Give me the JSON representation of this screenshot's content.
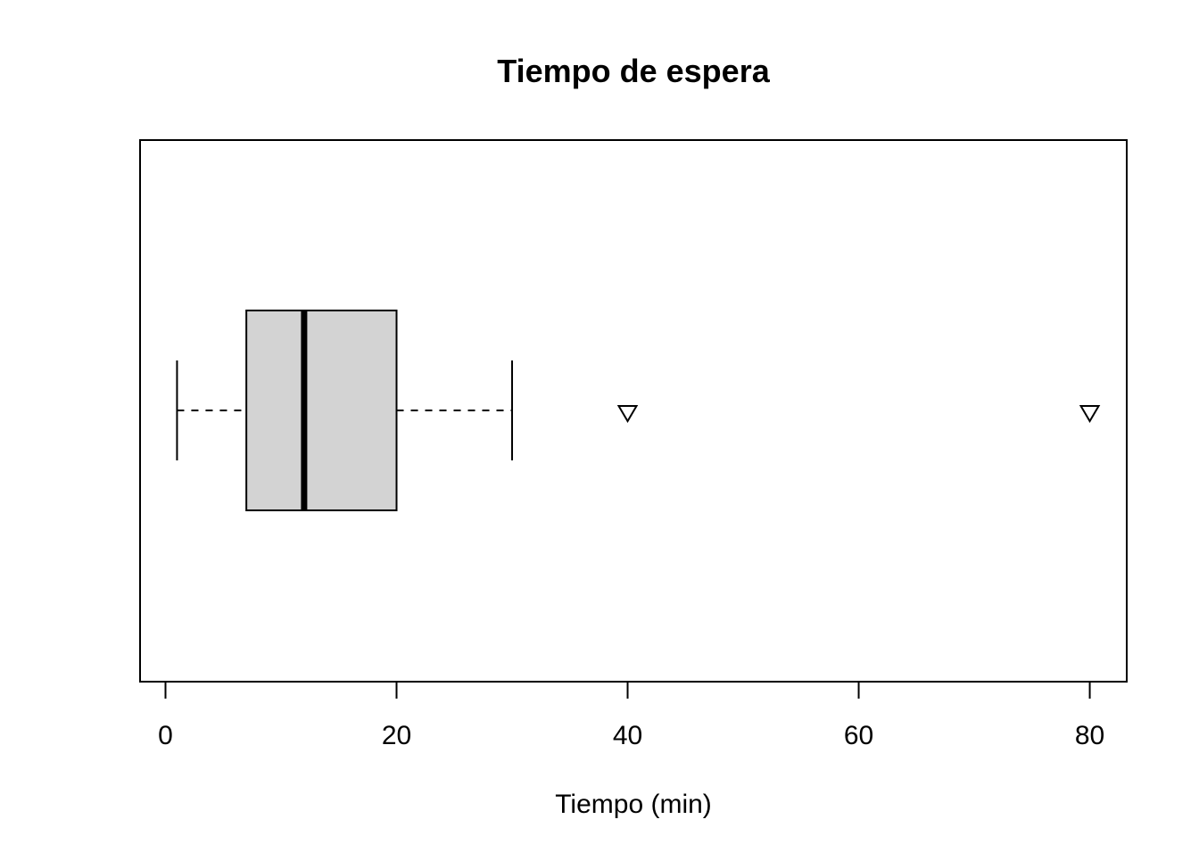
{
  "chart_data": {
    "type": "boxplot",
    "orientation": "horizontal",
    "title": "Tiempo de espera",
    "xlabel": "Tiempo (min)",
    "ylabel": "",
    "xlim": [
      -2.2,
      83.2
    ],
    "xticks": [
      0,
      20,
      40,
      60,
      80
    ],
    "xtick_labels": [
      "0",
      "20",
      "40",
      "60",
      "80"
    ],
    "grid": false,
    "box": {
      "whisker_low": 1,
      "q1": 7,
      "median": 12,
      "q3": 20,
      "whisker_high": 30,
      "outliers": [
        40,
        80
      ]
    },
    "colors": {
      "box_fill": "#d3d3d3",
      "stroke": "#000000",
      "background": "#ffffff"
    },
    "outlier_marker": "triangle-down"
  }
}
